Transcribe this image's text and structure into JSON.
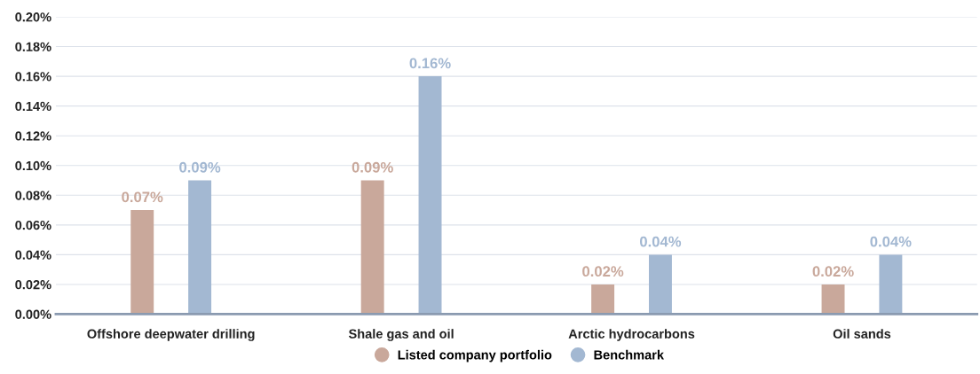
{
  "chart_data": {
    "type": "bar",
    "categories": [
      "Offshore deepwater drilling",
      "Shale gas and oil",
      "Arctic hydrocarbons",
      "Oil sands"
    ],
    "series": [
      {
        "name": "Listed company portfolio",
        "color": "#c9a89b",
        "values": [
          0.07,
          0.09,
          0.02,
          0.02
        ],
        "value_labels": [
          "0.07%",
          "0.09%",
          "0.02%",
          "0.02%"
        ]
      },
      {
        "name": "Benchmark",
        "color": "#a3b8d2",
        "values": [
          0.09,
          0.16,
          0.04,
          0.04
        ],
        "value_labels": [
          "0.09%",
          "0.16%",
          "0.04%",
          "0.04%"
        ]
      }
    ],
    "ylim": [
      0,
      0.2
    ],
    "yticks": [
      {
        "value": 0,
        "label": "0.00%"
      },
      {
        "value": 0.02,
        "label": "0.02%"
      },
      {
        "value": 0.04,
        "label": "0.04%"
      },
      {
        "value": 0.06,
        "label": "0.06%"
      },
      {
        "value": 0.08,
        "label": "0.08%"
      },
      {
        "value": 0.1,
        "label": "0.10%"
      },
      {
        "value": 0.12,
        "label": "0.12%"
      },
      {
        "value": 0.14,
        "label": "0.14%"
      },
      {
        "value": 0.16,
        "label": "0.16%"
      },
      {
        "value": 0.18,
        "label": "0.18%"
      },
      {
        "value": 0.2,
        "label": "0.20%"
      }
    ],
    "grid": "y",
    "legend": "bottom"
  }
}
